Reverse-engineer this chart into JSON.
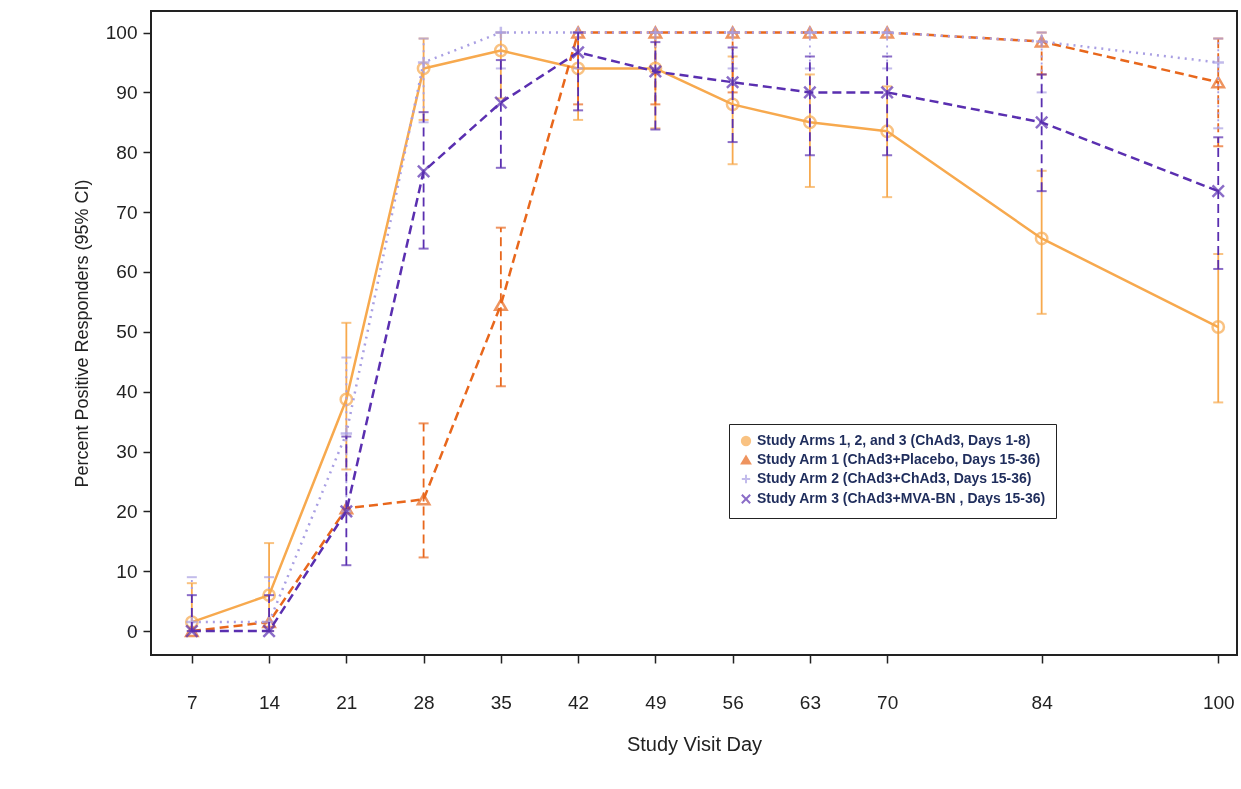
{
  "chart_data": {
    "type": "line",
    "xlabel": "Study Visit Day",
    "ylabel": "Percent Positive Responders (95% CI)",
    "x": [
      7,
      14,
      21,
      28,
      35,
      42,
      49,
      56,
      63,
      70,
      84,
      100
    ],
    "xlim": [
      3.3,
      101.7
    ],
    "xticks": [
      7,
      14,
      21,
      28,
      35,
      42,
      49,
      56,
      63,
      70,
      84,
      100
    ],
    "ylim": [
      -4,
      103.6
    ],
    "yticks": [
      0,
      10,
      20,
      30,
      40,
      50,
      60,
      70,
      80,
      90,
      100
    ],
    "grid": false,
    "legend": "bottom right",
    "series": [
      {
        "name": "Study Arms 1, 2, and 3 (ChAd3, Days 1-8)",
        "color": "#f7a94e",
        "marker": "circle",
        "line_style": "solid",
        "values": [
          1.5,
          6,
          38.7,
          94,
          97,
          94,
          94,
          88,
          85,
          83.5,
          65.6,
          50.8
        ],
        "errors": [
          [
            0,
            8
          ],
          [
            0,
            14.7
          ],
          [
            27,
            51.5
          ],
          [
            85.4,
            99
          ],
          [
            89,
            100
          ],
          [
            85.4,
            100
          ],
          [
            84,
            100
          ],
          [
            78,
            96
          ],
          [
            74.2,
            93
          ],
          [
            72.5,
            91
          ],
          [
            53,
            76.9
          ],
          [
            38.2,
            63
          ]
        ]
      },
      {
        "name": "Study Arm 1 (ChAd3+Placebo, Days 15-36)",
        "color": "#e8671c",
        "marker": "triangle",
        "line_style": "dashed",
        "values": [
          0,
          1.5,
          20.5,
          22,
          54.5,
          100,
          100,
          100,
          100,
          100,
          98.5,
          91.7
        ],
        "errors": [
          null,
          null,
          null,
          [
            12.3,
            34.7
          ],
          [
            40.9,
            67.4
          ],
          [
            88,
            100
          ],
          [
            88,
            100
          ],
          [
            90,
            100
          ],
          null,
          null,
          [
            93,
            100
          ],
          [
            81,
            99
          ]
        ]
      },
      {
        "name": "Study Arm 2 (ChAd3+ChAd3, Days 15-36)",
        "color": "#a99fe3",
        "marker": "plus",
        "line_style": "dotted",
        "values": [
          1.5,
          1.5,
          33,
          95,
          100,
          100,
          100,
          100,
          100,
          100,
          98.5,
          95
        ],
        "errors": [
          [
            0,
            9
          ],
          [
            0,
            9
          ],
          [
            20,
            45.7
          ],
          [
            85,
            99
          ],
          [
            94,
            100
          ],
          [
            94,
            100
          ],
          [
            94,
            100
          ],
          [
            94,
            100
          ],
          [
            94,
            100
          ],
          [
            94,
            100
          ],
          [
            90,
            100
          ],
          [
            84,
            99
          ]
        ]
      },
      {
        "name": "Study Arm 3 (ChAd3+MVA-BN , Days 15-36)",
        "color": "#5a2fb0",
        "marker": "cross",
        "line_style": "dashed",
        "values": [
          0,
          0,
          20,
          76.8,
          88.3,
          96.7,
          93.5,
          91.7,
          90,
          90,
          85,
          73.5
        ],
        "errors": [
          [
            0,
            6
          ],
          [
            0,
            6
          ],
          [
            11,
            32.5
          ],
          [
            63.9,
            86.7
          ],
          [
            77.4,
            95.4
          ],
          [
            87,
            100
          ],
          [
            83.8,
            98.4
          ],
          [
            81.7,
            97.5
          ],
          [
            79.5,
            96
          ],
          [
            79.5,
            96
          ],
          [
            73.5,
            93
          ],
          [
            60.5,
            82.5
          ]
        ]
      }
    ]
  }
}
